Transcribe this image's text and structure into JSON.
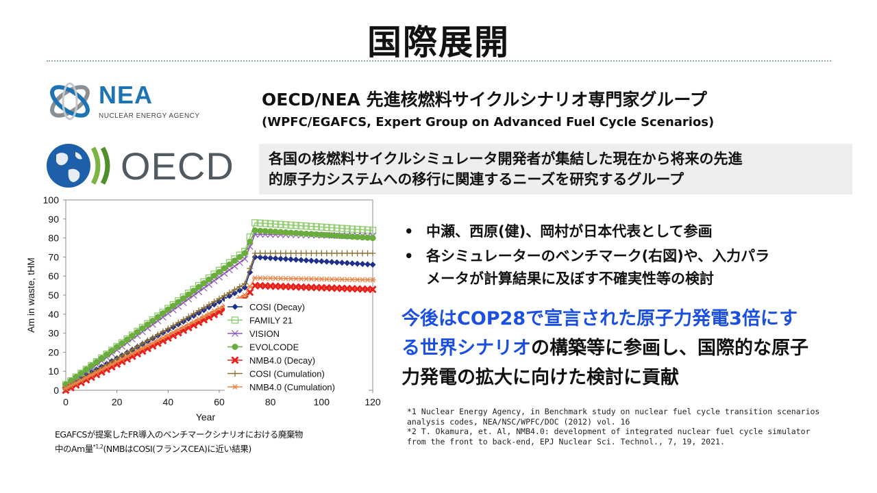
{
  "slide": {
    "title": "国際展開",
    "logos": {
      "nea_word": "NEA",
      "nea_sub": "NUCLEAR ENERGY AGENCY",
      "oecd_word": "OECD"
    },
    "group_title": "OECD/NEA 先進核燃料サイクルシナリオ専門家グループ",
    "group_subtitle": "(WPFC/EGAFCS, Expert Group on Advanced Fuel Cycle Scenarios)",
    "description_lines": [
      "各国の核燃料サイクルシミュレータ開発者が集結した現在から将来の先進",
      "的原子力システムへの移行に関連するニーズを研究するグループ"
    ],
    "bullets": [
      "中瀬、西原(健)、岡村が日本代表として参画",
      "各シミュレーターのベンチマーク(右図)や、入力パラ",
      "メータが計算結果に及ぼす不確実性等の検討"
    ],
    "bullet_mark": "•",
    "highlight": {
      "part1_blue": "今後はCOP28で宣言された原子力発電3倍にす",
      "part2_blue": "る世界シナリオ",
      "part2_black": "の構築等に参画し、国際的な原子",
      "part3_black": "力発電の拡大に向けた検討に貢献"
    },
    "footnotes": [
      "*1  Nuclear Energy Agency, in Benchmark study on nuclear fuel cycle transition scenarios",
      "analysis codes, NEA/NSC/WPFC/DOC (2012) vol. 16",
      "*2 T. Okamura, et. Al, NMB4.0: development of integrated nuclear fuel cycle simulator",
      "from the front to back-end, EPJ Nuclear Sci. Technol., 7, 19, 2021."
    ],
    "caption": {
      "line1": "EGAFCSが提案したFR導入のベンチマークシナリオにおける廃棄物",
      "line2_a": "中のAm量",
      "line2_sup": "*1,2",
      "line2_b": "(NMBはCOSI(フランスCEA)に近い結果)"
    }
  },
  "colors": {
    "nea_blue": "#1c74b4",
    "oecd_gray": "#505a60",
    "highlight_blue": "#1a4fe0"
  },
  "chart_data": {
    "type": "line",
    "xlabel": "Year",
    "ylabel": "Am in waste, tHM",
    "xlim": [
      0,
      120
    ],
    "ylim": [
      0,
      100
    ],
    "xticks": [
      0,
      20,
      40,
      60,
      80,
      100,
      120
    ],
    "yticks": [
      0,
      10,
      20,
      30,
      40,
      50,
      60,
      70,
      80,
      90,
      100
    ],
    "grid": false,
    "legend_position": "center-right",
    "series": [
      {
        "name": "COSI (Decay)",
        "color": "#1f2f8c",
        "marker": "diamond",
        "x": [
          0,
          70,
          74,
          120
        ],
        "y": [
          2,
          54,
          70,
          66
        ]
      },
      {
        "name": "FAMILY 21",
        "color": "#8ccb6a",
        "marker": "square-open",
        "x": [
          0,
          70,
          74,
          120
        ],
        "y": [
          3,
          73,
          88,
          84
        ]
      },
      {
        "name": "VISION",
        "color": "#8e55b8",
        "marker": "x",
        "x": [
          0,
          70,
          74,
          120
        ],
        "y": [
          2,
          69,
          82,
          81
        ]
      },
      {
        "name": "EVOLCODE",
        "color": "#6aad3d",
        "marker": "circle",
        "x": [
          0,
          70,
          74,
          120
        ],
        "y": [
          3,
          72,
          84,
          80
        ]
      },
      {
        "name": "NMB4.0 (Decay)",
        "color": "#e8201a",
        "marker": "x-bold",
        "x": [
          0,
          70,
          74,
          120
        ],
        "y": [
          0,
          48,
          55,
          53
        ]
      },
      {
        "name": "COSI (Cumulation)",
        "color": "#8a7030",
        "marker": "plus",
        "x": [
          0,
          70,
          74,
          120
        ],
        "y": [
          1,
          56,
          72,
          72
        ]
      },
      {
        "name": "NMB4.0 (Cumulation)",
        "color": "#e8874a",
        "marker": "asterisk",
        "x": [
          0,
          70,
          74,
          120
        ],
        "y": [
          1,
          50,
          59,
          58
        ]
      }
    ]
  }
}
